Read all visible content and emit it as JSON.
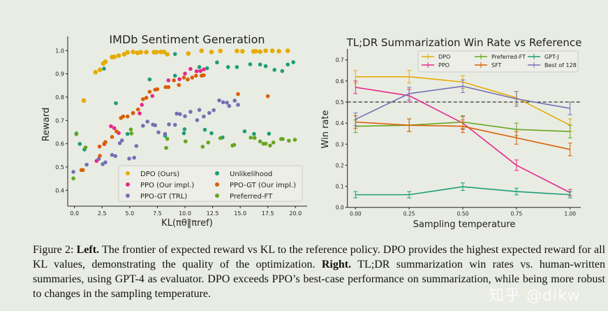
{
  "chart_data": [
    {
      "type": "scatter",
      "title": "IMDb Sentiment Generation",
      "xlabel": "KL(πθ‖πref)",
      "ylabel": "Reward",
      "xlim": [
        -0.5,
        20.5
      ],
      "ylim": [
        0.38,
        1.02
      ],
      "xticks": [
        "0.0",
        "2.5",
        "5.0",
        "7.5",
        "10.0",
        "12.5",
        "15.0",
        "17.5",
        "20.0"
      ],
      "yticks": [
        "0.4",
        "0.5",
        "0.6",
        "0.7",
        "0.8",
        "0.9",
        "1.0"
      ],
      "grid": false,
      "legend_placement": "lower-right",
      "series": [
        {
          "name": "DPO (Ours)",
          "color": "#e6ab02",
          "points": [
            [
              0.84,
              0.785
            ],
            [
              1.9,
              0.907
            ],
            [
              2.3,
              0.917
            ],
            [
              2.6,
              0.944
            ],
            [
              2.8,
              0.952
            ],
            [
              3.4,
              0.972
            ],
            [
              3.6,
              0.973
            ],
            [
              4.0,
              0.978
            ],
            [
              4.5,
              0.984
            ],
            [
              4.8,
              0.992
            ],
            [
              5.3,
              0.994
            ],
            [
              5.7,
              0.99
            ],
            [
              6.0,
              0.993
            ],
            [
              6.5,
              0.993
            ],
            [
              7.2,
              0.993
            ],
            [
              7.4,
              0.993
            ],
            [
              7.8,
              0.994
            ],
            [
              8.1,
              0.994
            ],
            [
              8.4,
              0.984
            ],
            [
              10.3,
              0.987
            ],
            [
              11.5,
              0.999
            ],
            [
              12.4,
              0.994
            ],
            [
              13.2,
              0.998
            ],
            [
              14.7,
              0.998
            ],
            [
              15.2,
              0.997
            ],
            [
              16.2,
              0.996
            ],
            [
              16.4,
              0.997
            ],
            [
              16.8,
              0.995
            ],
            [
              17.3,
              0.999
            ],
            [
              17.9,
              0.999
            ],
            [
              18.5,
              0.997
            ],
            [
              19.3,
              0.999
            ]
          ]
        },
        {
          "name": "Unlikelihood",
          "color": "#1b9e77",
          "points": [
            [
              0.17,
              0.644
            ],
            [
              0.48,
              0.599
            ],
            [
              0.9,
              0.575
            ],
            [
              2.67,
              0.922
            ],
            [
              3.75,
              0.774
            ],
            [
              4.8,
              0.642
            ],
            [
              6.8,
              0.876
            ],
            [
              8.2,
              0.634
            ],
            [
              9.1,
              0.985
            ],
            [
              9.1,
              0.892
            ],
            [
              9.9,
              0.645
            ],
            [
              9.96,
              0.662
            ],
            [
              11.3,
              0.929
            ],
            [
              11.8,
              0.66
            ],
            [
              12.0,
              0.924
            ],
            [
              12.4,
              0.645
            ],
            [
              12.9,
              0.949
            ],
            [
              13.4,
              0.627
            ],
            [
              13.9,
              0.929
            ],
            [
              14.7,
              0.929
            ],
            [
              15.4,
              0.653
            ],
            [
              15.9,
              0.941
            ],
            [
              16.25,
              0.642
            ],
            [
              16.8,
              0.94
            ],
            [
              17.3,
              0.933
            ],
            [
              17.6,
              0.643
            ],
            [
              18.1,
              0.917
            ],
            [
              18.8,
              0.912
            ],
            [
              19.3,
              0.94
            ],
            [
              19.8,
              0.95
            ]
          ]
        },
        {
          "name": "PPO (Our impl.)",
          "color": "#e7298a",
          "points": [
            [
              2.0,
              0.526
            ],
            [
              2.7,
              0.598
            ],
            [
              3.3,
              0.675
            ],
            [
              3.6,
              0.667
            ],
            [
              4.0,
              0.646
            ],
            [
              5.3,
              0.731
            ],
            [
              5.9,
              0.73
            ],
            [
              6.1,
              0.767
            ],
            [
              7.05,
              0.805
            ],
            [
              8.5,
              0.872
            ],
            [
              9.5,
              0.877
            ],
            [
              10.0,
              0.901
            ],
            [
              10.5,
              0.921
            ],
            [
              11.05,
              0.911
            ],
            [
              11.4,
              0.912
            ],
            [
              11.7,
              0.919
            ]
          ]
        },
        {
          "name": "PPO-GT (Our impl.)",
          "color": "#d95f02",
          "points": [
            [
              0.63,
              0.487
            ],
            [
              0.76,
              0.487
            ],
            [
              2.3,
              0.548
            ],
            [
              2.27,
              0.588
            ],
            [
              2.7,
              0.6
            ],
            [
              2.8,
              0.607
            ],
            [
              3.4,
              0.629
            ],
            [
              3.8,
              0.653
            ],
            [
              4.2,
              0.71
            ],
            [
              4.4,
              0.717
            ],
            [
              4.8,
              0.717
            ],
            [
              5.3,
              0.732
            ],
            [
              5.75,
              0.747
            ],
            [
              6.2,
              0.791
            ],
            [
              6.5,
              0.797
            ],
            [
              6.8,
              0.823
            ],
            [
              7.3,
              0.832
            ],
            [
              7.5,
              0.834
            ],
            [
              8.25,
              0.843
            ],
            [
              8.5,
              0.843
            ],
            [
              9.0,
              0.872
            ],
            [
              9.45,
              0.852
            ],
            [
              9.9,
              0.884
            ],
            [
              10.25,
              0.876
            ],
            [
              10.65,
              0.884
            ],
            [
              11.0,
              0.892
            ],
            [
              11.5,
              0.892
            ],
            [
              11.7,
              0.894
            ],
            [
              14.8,
              0.813
            ],
            [
              17.5,
              0.804
            ]
          ]
        },
        {
          "name": "PPO-GT (TRL)",
          "color": "#7570b3",
          "points": [
            [
              -0.1,
              0.479
            ],
            [
              1.1,
              0.51
            ],
            [
              2.2,
              0.535
            ],
            [
              2.55,
              0.512
            ],
            [
              2.8,
              0.52
            ],
            [
              3.4,
              0.552
            ],
            [
              3.7,
              0.547
            ],
            [
              4.1,
              0.602
            ],
            [
              4.3,
              0.614
            ],
            [
              4.95,
              0.536
            ],
            [
              5.4,
              0.54
            ],
            [
              5.6,
              0.59
            ],
            [
              6.2,
              0.677
            ],
            [
              6.6,
              0.695
            ],
            [
              7.1,
              0.682
            ],
            [
              7.3,
              0.679
            ],
            [
              7.6,
              0.649
            ],
            [
              8.2,
              0.642
            ],
            [
              8.55,
              0.683
            ],
            [
              9.1,
              0.681
            ],
            [
              9.25,
              0.729
            ],
            [
              9.55,
              0.727
            ],
            [
              10.0,
              0.718
            ],
            [
              10.5,
              0.737
            ],
            [
              11.1,
              0.701
            ],
            [
              11.3,
              0.745
            ],
            [
              11.7,
              0.717
            ],
            [
              12.2,
              0.732
            ],
            [
              12.6,
              0.744
            ],
            [
              13.1,
              0.786
            ],
            [
              13.45,
              0.778
            ],
            [
              13.8,
              0.776
            ],
            [
              14.0,
              0.762
            ],
            [
              14.5,
              0.785
            ],
            [
              14.8,
              0.767
            ]
          ]
        },
        {
          "name": "Preferred-FT",
          "color": "#66a61e",
          "points": [
            [
              -0.1,
              0.451
            ],
            [
              0.17,
              0.641
            ],
            [
              1.0,
              0.584
            ],
            [
              5.1,
              0.661
            ],
            [
              5.16,
              0.644
            ],
            [
              8.4,
              0.621
            ],
            [
              8.3,
              0.582
            ],
            [
              10.05,
              0.61
            ],
            [
              11.6,
              0.587
            ],
            [
              12.1,
              0.605
            ],
            [
              13.2,
              0.624
            ],
            [
              14.3,
              0.592
            ],
            [
              14.45,
              0.595
            ],
            [
              15.95,
              0.626
            ],
            [
              16.3,
              0.625
            ],
            [
              16.8,
              0.61
            ],
            [
              17.1,
              0.6
            ],
            [
              17.3,
              0.6
            ],
            [
              17.7,
              0.592
            ],
            [
              18.0,
              0.605
            ],
            [
              18.7,
              0.62
            ],
            [
              18.85,
              0.62
            ],
            [
              19.4,
              0.613
            ],
            [
              19.95,
              0.617
            ]
          ]
        }
      ]
    },
    {
      "type": "line",
      "title": "TL;DR Summarization Win Rate vs Reference",
      "xlabel": "Sampling temperature",
      "ylabel": "Win rate",
      "xlim": [
        -0.05,
        1.05
      ],
      "ylim": [
        0.0,
        0.75
      ],
      "xticks": [
        "0.00",
        "0.25",
        "0.50",
        "0.75",
        "1.00"
      ],
      "yticks": [
        "0.0",
        "0.1",
        "0.2",
        "0.3",
        "0.4",
        "0.5",
        "0.6",
        "0.7"
      ],
      "x": [
        0.0,
        0.25,
        0.5,
        0.75,
        1.0
      ],
      "reference_line": 0.5,
      "grid": false,
      "legend_placement": "top-right",
      "series": [
        {
          "name": "DPO",
          "color": "#e6ab02",
          "values": [
            0.62,
            0.62,
            0.595,
            0.52,
            0.39
          ],
          "errors": [
            0.03,
            0.03,
            0.03,
            0.03,
            0.03
          ]
        },
        {
          "name": "PPO",
          "color": "#e7298a",
          "values": [
            0.57,
            0.53,
            0.4,
            0.2,
            0.07
          ],
          "errors": [
            0.03,
            0.03,
            0.03,
            0.025,
            0.015
          ]
        },
        {
          "name": "Preferred-FT",
          "color": "#66a61e",
          "values": [
            0.385,
            0.39,
            0.405,
            0.37,
            0.36
          ],
          "errors": [
            0.03,
            0.03,
            0.03,
            0.03,
            0.03
          ]
        },
        {
          "name": "SFT",
          "color": "#d95f02",
          "values": [
            0.405,
            0.39,
            0.385,
            0.33,
            0.275
          ],
          "errors": [
            0.03,
            0.03,
            0.03,
            0.03,
            0.03
          ]
        },
        {
          "name": "GPT-J",
          "color": "#1b9e77",
          "values": [
            0.06,
            0.06,
            0.098,
            0.075,
            0.06
          ],
          "errors": [
            0.015,
            0.015,
            0.018,
            0.016,
            0.015
          ]
        },
        {
          "name": "Best of 128",
          "color": "#7570b3",
          "values": [
            0.418,
            0.54,
            0.575,
            0.515,
            0.47
          ],
          "errors": [
            0.03,
            0.03,
            0.03,
            0.035,
            0.03
          ]
        }
      ]
    }
  ],
  "caption": {
    "label": "Figure 2:",
    "left_bold": "Left.",
    "left_text": "The frontier of expected reward vs KL to the reference policy. DPO provides the highest expected reward for all KL values, demonstrating the quality of the optimization.",
    "right_bold": "Right.",
    "right_text": "TL;DR summarization win rates vs. human-written summaries, using GPT-4 as evaluator. DPO exceeds PPO’s best-case performance on summarization, while being more robust to changes in the sampling temperature."
  },
  "watermark": "知乎 @dikw"
}
